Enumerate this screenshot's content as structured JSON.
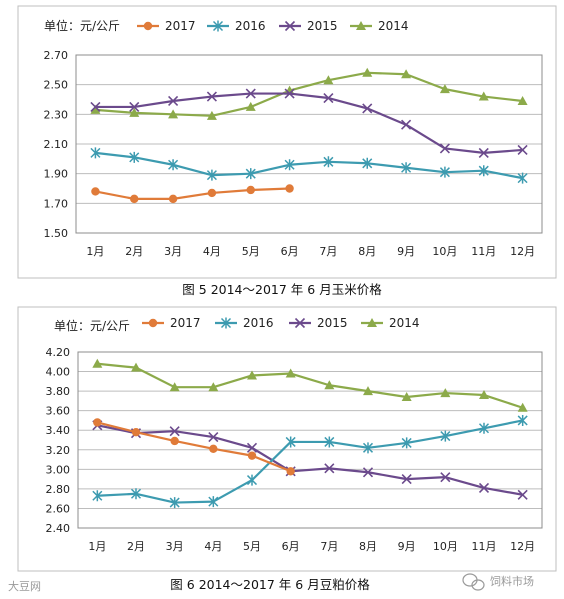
{
  "chart_data": [
    {
      "type": "line",
      "unit_label": "单位：元/公斤",
      "caption": "图 5   2014～2017 年 6 月玉米价格",
      "categories": [
        "1月",
        "2月",
        "3月",
        "4月",
        "5月",
        "6月",
        "7月",
        "8月",
        "9月",
        "10月",
        "11月",
        "12月"
      ],
      "ylim": [
        1.5,
        2.7
      ],
      "yticks": [
        "2.70",
        "2.50",
        "2.30",
        "2.10",
        "1.90",
        "1.70",
        "1.50"
      ],
      "grid": true,
      "legend": "top",
      "series": [
        {
          "name": "2017",
          "color": "#E07B39",
          "marker": "circle",
          "values": [
            1.78,
            1.73,
            1.73,
            1.77,
            1.79,
            1.8,
            null,
            null,
            null,
            null,
            null,
            null
          ]
        },
        {
          "name": "2016",
          "color": "#3D9BB0",
          "marker": "asterisk",
          "values": [
            2.04,
            2.01,
            1.96,
            1.89,
            1.9,
            1.96,
            1.98,
            1.97,
            1.94,
            1.91,
            1.92,
            1.87
          ]
        },
        {
          "name": "2015",
          "color": "#6B4A8C",
          "marker": "cross",
          "values": [
            2.35,
            2.35,
            2.39,
            2.42,
            2.44,
            2.44,
            2.41,
            2.34,
            2.23,
            2.07,
            2.04,
            2.06
          ]
        },
        {
          "name": "2014",
          "color": "#8CAA4A",
          "marker": "triangle",
          "values": [
            2.33,
            2.31,
            2.3,
            2.29,
            2.35,
            2.46,
            2.53,
            2.58,
            2.57,
            2.47,
            2.42,
            2.39
          ]
        }
      ]
    },
    {
      "type": "line",
      "unit_label": "单位：元/公斤",
      "caption": "图 6   2014～2017 年 6 月豆粕价格",
      "categories": [
        "1月",
        "2月",
        "3月",
        "4月",
        "5月",
        "6月",
        "7月",
        "8月",
        "9月",
        "10月",
        "11月",
        "12月"
      ],
      "ylim": [
        2.4,
        4.2
      ],
      "yticks": [
        "4.20",
        "4.00",
        "3.80",
        "3.60",
        "3.40",
        "3.20",
        "3.00",
        "2.80",
        "2.60",
        "2.40"
      ],
      "grid": true,
      "legend": "top",
      "series": [
        {
          "name": "2017",
          "color": "#E07B39",
          "marker": "circle",
          "values": [
            3.48,
            3.38,
            3.29,
            3.21,
            3.14,
            2.98,
            null,
            null,
            null,
            null,
            null,
            null
          ]
        },
        {
          "name": "2016",
          "color": "#3D9BB0",
          "marker": "asterisk",
          "values": [
            2.73,
            2.75,
            2.66,
            2.67,
            2.89,
            3.28,
            3.28,
            3.22,
            3.27,
            3.34,
            3.42,
            3.5
          ]
        },
        {
          "name": "2015",
          "color": "#6B4A8C",
          "marker": "cross",
          "values": [
            3.45,
            3.37,
            3.39,
            3.33,
            3.22,
            2.98,
            3.01,
            2.97,
            2.9,
            2.92,
            2.81,
            2.74
          ]
        },
        {
          "name": "2014",
          "color": "#8CAA4A",
          "marker": "triangle",
          "values": [
            4.08,
            4.04,
            3.84,
            3.84,
            3.96,
            3.98,
            3.86,
            3.8,
            3.74,
            3.78,
            3.76,
            3.63
          ]
        }
      ]
    }
  ],
  "watermarks": {
    "left": "大豆网",
    "right": "饲料市场"
  }
}
